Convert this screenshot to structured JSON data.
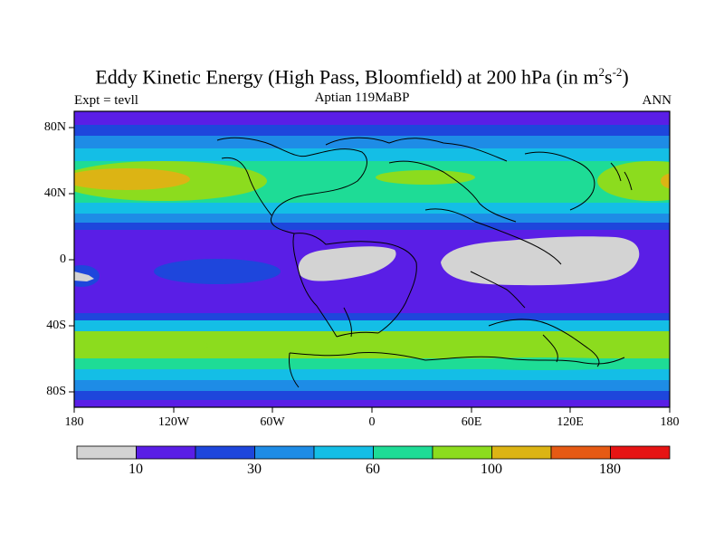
{
  "title": {
    "main": "Eddy Kinetic Energy (High Pass, Bloomfield) at 200 hPa (in m",
    "sup1": "2",
    "mid": "s",
    "sup2": "-2",
    "end": ")"
  },
  "subtitle": {
    "left": "Expt = tevll",
    "center": "Aptian  119MaBP",
    "right": "ANN"
  },
  "axes": {
    "y_ticks": [
      "80N",
      "40N",
      "0",
      "40S",
      "80S"
    ],
    "x_ticks": [
      "180",
      "120W",
      "60W",
      "0",
      "60E",
      "120E",
      "180"
    ]
  },
  "colorbar": {
    "colors": [
      "#d3d3d3",
      "#5a1ee6",
      "#1e46dc",
      "#1e8ce6",
      "#14bee6",
      "#1edc96",
      "#8cdc1e",
      "#dcb414",
      "#e65a14",
      "#e61414"
    ],
    "labels": [
      "10",
      "30",
      "60",
      "100",
      "180"
    ]
  },
  "map": {
    "band_colors": {
      "gray": "#d3d3d3",
      "purple": "#5a1ee6",
      "blue": "#1e46dc",
      "midblue": "#1e8ce6",
      "cyan": "#14bee6",
      "teal": "#1edc96",
      "green": "#8cdc1e",
      "orange": "#dcb414"
    }
  }
}
